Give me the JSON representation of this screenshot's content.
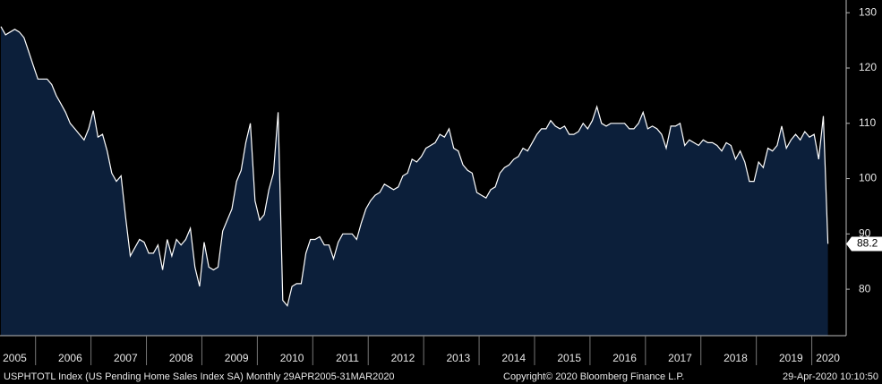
{
  "chart_data": {
    "type": "area",
    "color": "#0c1f3a",
    "line_color": "#ffffff",
    "ylim": [
      71.6,
      132.3
    ],
    "yticks": [
      80,
      90,
      100,
      110,
      120,
      130
    ],
    "categories": [
      null,
      null,
      null,
      "2005",
      null,
      null,
      null,
      null,
      null,
      null,
      null,
      null,
      null,
      null,
      null,
      "2006",
      null,
      null,
      null,
      null,
      null,
      null,
      null,
      null,
      null,
      null,
      null,
      "2007",
      null,
      null,
      null,
      null,
      null,
      null,
      null,
      null,
      null,
      null,
      null,
      "2008",
      null,
      null,
      null,
      null,
      null,
      null,
      null,
      null,
      null,
      null,
      null,
      "2009",
      null,
      null,
      null,
      null,
      null,
      null,
      null,
      null,
      null,
      null,
      null,
      "2010",
      null,
      null,
      null,
      null,
      null,
      null,
      null,
      null,
      null,
      null,
      null,
      "2011",
      null,
      null,
      null,
      null,
      null,
      null,
      null,
      null,
      null,
      null,
      null,
      "2012",
      null,
      null,
      null,
      null,
      null,
      null,
      null,
      null,
      null,
      null,
      null,
      "2013",
      null,
      null,
      null,
      null,
      null,
      null,
      null,
      null,
      null,
      null,
      null,
      "2014",
      null,
      null,
      null,
      null,
      null,
      null,
      null,
      null,
      null,
      null,
      null,
      "2015",
      null,
      null,
      null,
      null,
      null,
      null,
      null,
      null,
      null,
      null,
      null,
      "2016",
      null,
      null,
      null,
      null,
      null,
      null,
      null,
      null,
      null,
      null,
      null,
      "2017",
      null,
      null,
      null,
      null,
      null,
      null,
      null,
      null,
      null,
      null,
      null,
      "2018",
      null,
      null,
      null,
      null,
      null,
      null,
      null,
      null,
      null,
      null,
      null,
      "2019",
      null,
      null,
      null,
      null,
      null,
      null,
      null,
      "2020"
    ],
    "values": [
      127.5,
      126,
      126.5,
      127,
      126.5,
      125.5,
      123,
      120.5,
      118,
      118,
      118,
      117,
      115,
      113.5,
      112,
      110,
      109,
      108,
      107,
      109,
      112.3,
      107.5,
      108,
      105,
      101,
      99.5,
      100.5,
      93,
      86,
      87.5,
      89,
      88.5,
      86.5,
      86.5,
      88,
      83.5,
      89,
      86,
      89,
      88,
      89,
      91,
      84,
      80.5,
      88.5,
      84,
      83.5,
      84,
      90.5,
      92.5,
      94.5,
      99.5,
      101.5,
      106.5,
      110,
      96,
      92.5,
      93.5,
      98,
      101,
      112,
      78,
      77,
      80.5,
      81,
      81,
      86.5,
      89,
      89,
      89.5,
      88,
      88,
      85.5,
      88.5,
      90,
      90,
      90,
      89,
      92,
      94.5,
      96,
      97,
      97.5,
      99,
      98.5,
      98,
      98.5,
      100.5,
      101,
      103.5,
      103,
      104,
      105.5,
      106,
      106.5,
      108,
      107.5,
      109,
      105.5,
      105,
      102.5,
      101.5,
      101,
      97.5,
      97,
      96.5,
      98,
      98.5,
      101,
      102,
      102.5,
      103.5,
      104,
      105.5,
      105,
      106.5,
      108,
      109,
      109,
      110.5,
      109.5,
      109,
      109.5,
      108,
      108,
      108.5,
      110,
      109,
      110.5,
      113,
      110,
      109.5,
      110,
      110,
      110,
      110,
      109,
      109,
      110,
      112,
      109,
      109.5,
      109,
      108,
      105.5,
      109.5,
      109.5,
      110,
      106,
      107,
      106.5,
      106,
      107,
      106.5,
      106.5,
      106,
      105,
      106.5,
      106,
      103.5,
      105,
      103,
      99.5,
      99.5,
      103,
      102,
      105.5,
      105,
      106,
      109.5,
      105.5,
      107,
      108,
      107,
      108.5,
      107.5,
      108,
      103.5,
      111.3,
      88.2
    ],
    "source": "USPHTOTL Index (US Pending Home Sales Index SA)  Monthly 29APR2005-31MAR2020",
    "copyright": "Copyright© 2020 Bloomberg Finance L.P.",
    "timestamp": "29-Apr-2020 10:10:50"
  }
}
